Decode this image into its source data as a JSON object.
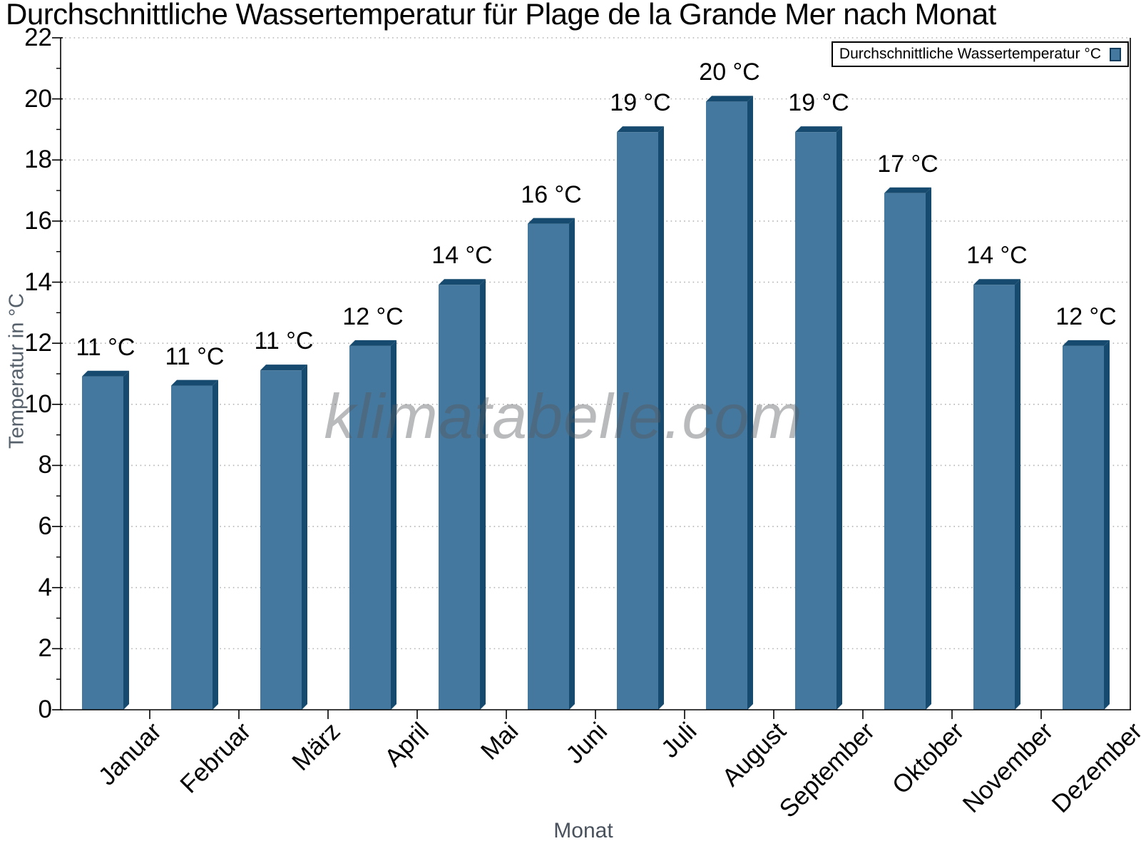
{
  "chart_data": {
    "type": "bar",
    "title": "Durchschnittliche Wassertemperatur für Plage de la Grande Mer nach Monat",
    "categories": [
      "Januar",
      "Februar",
      "März",
      "April",
      "Mai",
      "Juni",
      "Juli",
      "August",
      "September",
      "Oktober",
      "November",
      "Dezember"
    ],
    "values": [
      11.1,
      10.8,
      11.3,
      12.1,
      14.1,
      16.1,
      19.1,
      20.1,
      19.1,
      17.1,
      14.1,
      12.1
    ],
    "value_labels": [
      "11 °C",
      "11 °C",
      "11 °C",
      "12 °C",
      "14 °C",
      "16 °C",
      "19 °C",
      "20 °C",
      "19 °C",
      "17 °C",
      "14 °C",
      "12 °C"
    ],
    "xlabel": "Monat",
    "ylabel": "Temperatur in °C",
    "ylim": [
      0,
      22
    ],
    "ytick_step": 2,
    "grid": "horizontal-dotted",
    "legend": {
      "label": "Durchschnittliche Wassertemperatur °C",
      "position": "top-right"
    },
    "watermark": "klimatabelle.com",
    "colors": {
      "bar_face": "#45789E",
      "bar_shade": "#164A6E",
      "gridline": "#B4B4B4",
      "axis": "#000000",
      "axis_title_gray": "#55606B"
    }
  }
}
